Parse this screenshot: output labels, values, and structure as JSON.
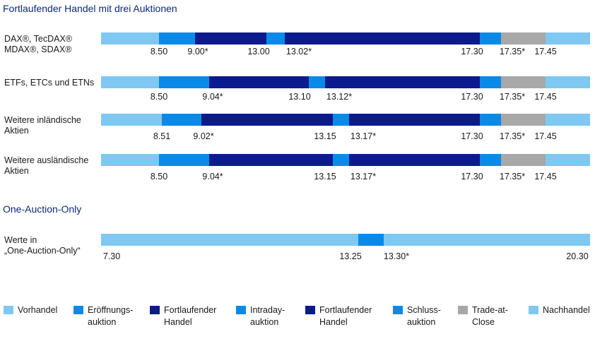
{
  "sections": [
    {
      "title": "Fortlaufender Handel mit drei Auktionen"
    },
    {
      "title": "One-Auction-Only"
    }
  ],
  "colors": {
    "pre": "#7fc8f2",
    "auction": "#0a8ae8",
    "continuous": "#0b1a8c",
    "close": "#a8a8a8",
    "post": "#7fc8f2"
  },
  "rows": [
    {
      "label_lines": [
        "DAX®, TecDAX®",
        "MDAX®, SDAX®"
      ],
      "segments": [
        {
          "type": "pre",
          "to": 8.5
        },
        {
          "type": "auction",
          "to": 9.0
        },
        {
          "type": "continuous",
          "to": 13.0
        },
        {
          "type": "auction",
          "to": 13.02
        },
        {
          "type": "continuous",
          "to": 17.3
        },
        {
          "type": "auction",
          "to": 17.35
        },
        {
          "type": "close",
          "to": 17.45
        },
        {
          "type": "post",
          "to": 20.0
        }
      ],
      "ticks": [
        "8.50",
        "9.00*",
        "13.00",
        "13.02*",
        "17.30",
        "17.35*",
        "17.45"
      ]
    },
    {
      "label_lines": [
        "ETFs, ETCs und ETNs"
      ],
      "segments": [
        {
          "type": "pre",
          "to": 8.5
        },
        {
          "type": "auction",
          "to": 9.04
        },
        {
          "type": "continuous",
          "to": 13.1
        },
        {
          "type": "auction",
          "to": 13.12
        },
        {
          "type": "continuous",
          "to": 17.3
        },
        {
          "type": "auction",
          "to": 17.35
        },
        {
          "type": "close",
          "to": 17.45
        },
        {
          "type": "post",
          "to": 20.0
        }
      ],
      "ticks": [
        "8.50",
        "9.04*",
        "13.10",
        "13.12*",
        "17.30",
        "17.35*",
        "17.45"
      ]
    },
    {
      "label_lines": [
        "Weitere inländische",
        "Aktien"
      ],
      "segments": [
        {
          "type": "pre",
          "to": 8.51
        },
        {
          "type": "auction",
          "to": 9.02
        },
        {
          "type": "continuous",
          "to": 13.15
        },
        {
          "type": "auction",
          "to": 13.17
        },
        {
          "type": "continuous",
          "to": 17.3
        },
        {
          "type": "auction",
          "to": 17.35
        },
        {
          "type": "close",
          "to": 17.45
        },
        {
          "type": "post",
          "to": 20.0
        }
      ],
      "ticks": [
        "8.51",
        "9.02*",
        "13.15",
        "13.17*",
        "17.30",
        "17.35*",
        "17.45"
      ]
    },
    {
      "label_lines": [
        "Weitere ausländische",
        "Aktien"
      ],
      "segments": [
        {
          "type": "pre",
          "to": 8.5
        },
        {
          "type": "auction",
          "to": 9.04
        },
        {
          "type": "continuous",
          "to": 13.15
        },
        {
          "type": "auction",
          "to": 13.17
        },
        {
          "type": "continuous",
          "to": 17.3
        },
        {
          "type": "auction",
          "to": 17.35
        },
        {
          "type": "close",
          "to": 17.45
        },
        {
          "type": "post",
          "to": 20.0
        }
      ],
      "ticks": [
        "8.50",
        "9.04*",
        "13.15",
        "13.17*",
        "17.30",
        "17.35*",
        "17.45"
      ]
    },
    {
      "label_lines": [
        "Werte in",
        "„One-Auction-Only“"
      ],
      "segments": [
        {
          "type": "pre",
          "to": 13.25
        },
        {
          "type": "auction",
          "to": 13.3
        },
        {
          "type": "post",
          "to": 20.3
        }
      ],
      "ticks": [
        "7.30",
        "13.25",
        "13.30*",
        "20.30"
      ]
    }
  ],
  "legend": [
    {
      "lines": [
        "Vorhandel"
      ],
      "type": "pre"
    },
    {
      "lines": [
        "Eröffnungs-",
        "auktion"
      ],
      "type": "auction"
    },
    {
      "lines": [
        "Fortlaufender",
        "Handel"
      ],
      "type": "continuous"
    },
    {
      "lines": [
        "Intraday-",
        "auktion"
      ],
      "type": "auction"
    },
    {
      "lines": [
        "Fortlaufender",
        "Handel"
      ],
      "type": "continuous"
    },
    {
      "lines": [
        "Schluss-",
        "auktion"
      ],
      "type": "auction"
    },
    {
      "lines": [
        "Trade-at-",
        "Close"
      ],
      "type": "close"
    },
    {
      "lines": [
        "Nachhandel"
      ],
      "type": "post"
    }
  ]
}
